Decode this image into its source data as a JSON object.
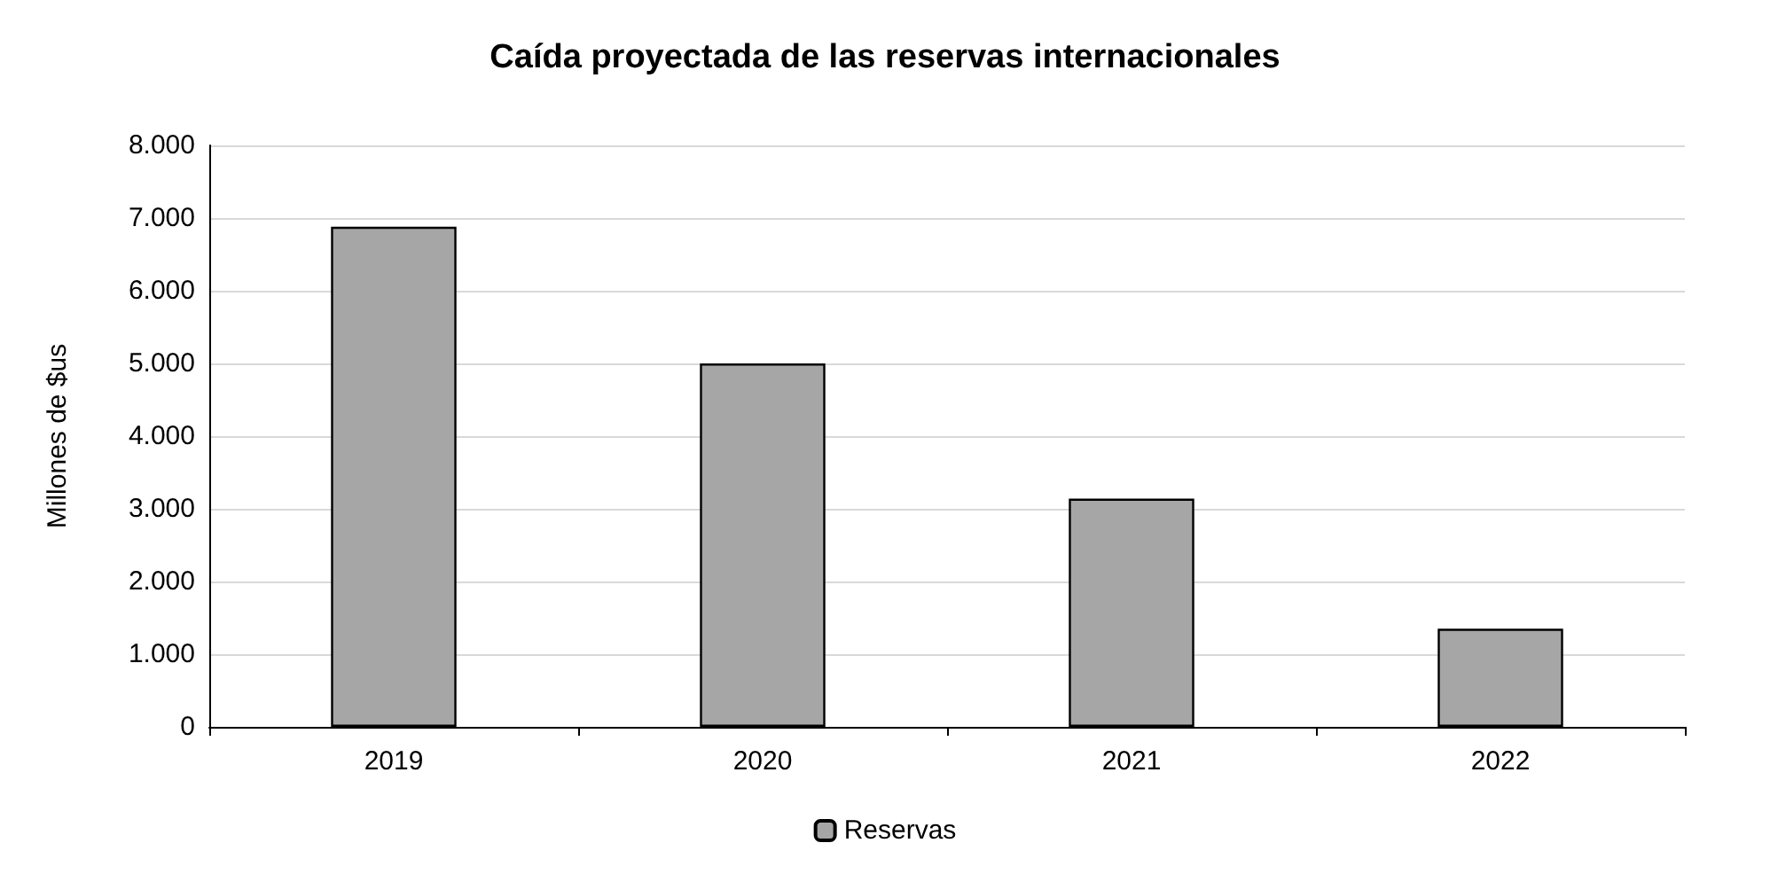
{
  "chart_data": {
    "type": "bar",
    "title": "Caída proyectada de las reservas internacionales",
    "ylabel": "Millones de $us",
    "categories": [
      "2019",
      "2020",
      "2021",
      "2022"
    ],
    "series": [
      {
        "name": "Reservas",
        "color": "#a6a6a6",
        "values": [
          6880,
          5000,
          3140,
          1350
        ]
      }
    ],
    "ylim": [
      0,
      8000
    ],
    "yticks": [
      0,
      {
        "value": 1000,
        "label": "1.000"
      },
      {
        "value": 2000,
        "label": "2.000"
      },
      {
        "value": 3000,
        "label": "3.000"
      },
      {
        "value": 4000,
        "label": "4.000"
      },
      {
        "value": 5000,
        "label": "5.000"
      },
      {
        "value": 6000,
        "label": "6.000"
      },
      {
        "value": 7000,
        "label": "7.000"
      },
      {
        "value": 8000,
        "label": "8.000"
      }
    ],
    "grid": "y",
    "legend": "bottom"
  }
}
